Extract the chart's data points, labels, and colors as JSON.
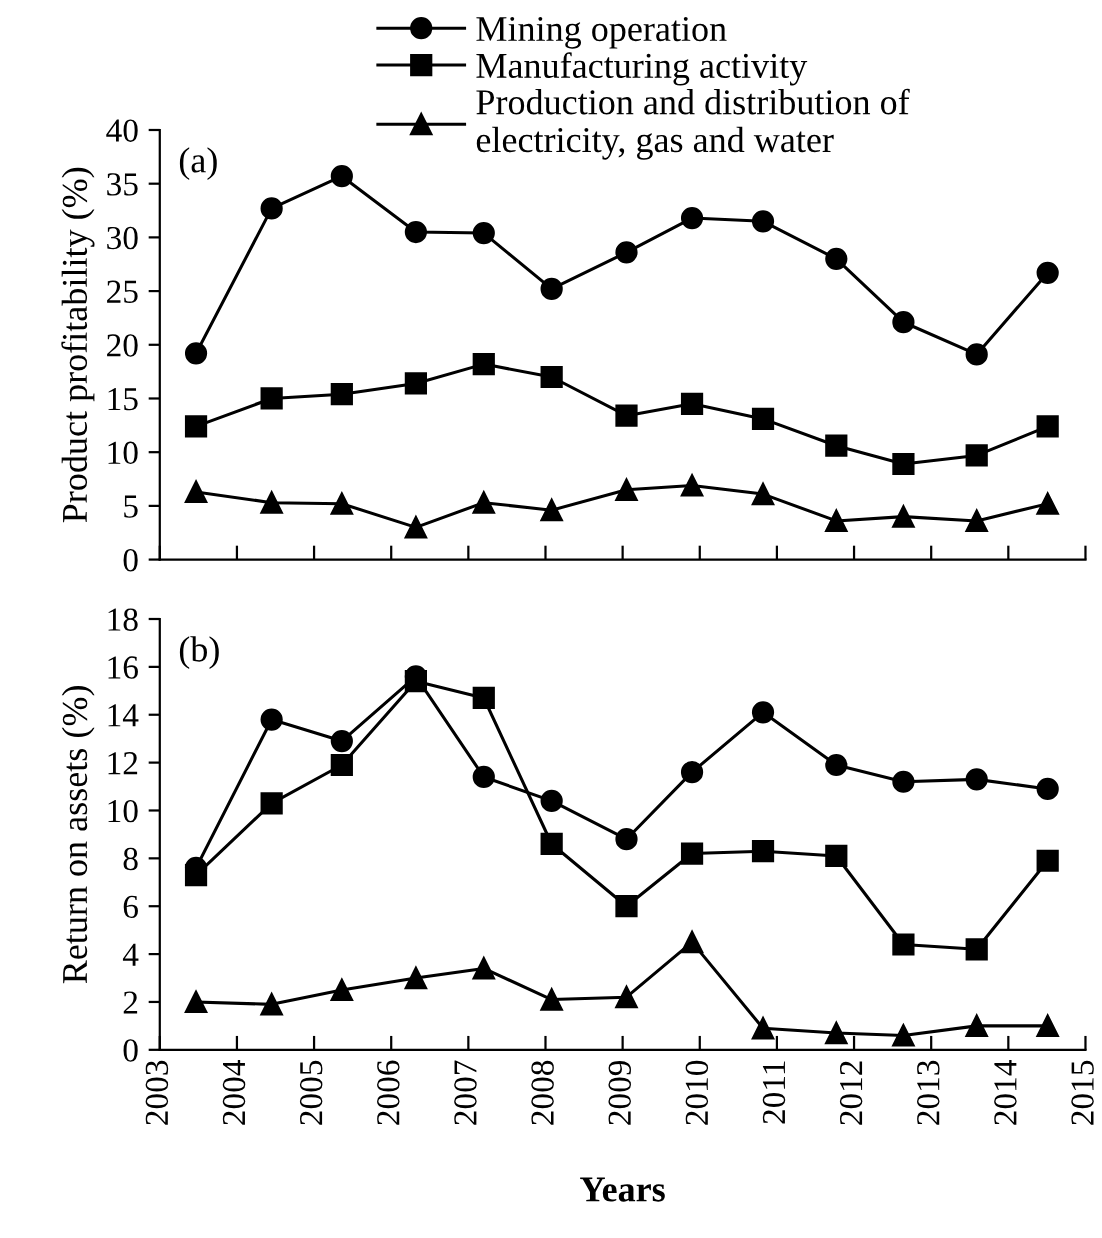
{
  "chart_data": [
    {
      "type": "line",
      "ylabel": "Product profitability (%)",
      "annotations": [
        "(a)"
      ],
      "legend": "top",
      "tick_labels": "y",
      "grid": false,
      "xlim": [
        2003,
        2015
      ],
      "xticks": [
        2003,
        2004,
        2005,
        2006,
        2007,
        2008,
        2009,
        2010,
        2011,
        2012,
        2013,
        2014,
        2015
      ],
      "ylim": [
        0,
        40
      ],
      "yticks": [
        0,
        5,
        10,
        15,
        20,
        25,
        30,
        35,
        40
      ],
      "x": [
        2003.47,
        2004.45,
        2005.36,
        2006.32,
        2007.2,
        2008.08,
        2009.05,
        2009.9,
        2010.82,
        2011.77,
        2012.64,
        2013.59,
        2014.51
      ],
      "series": [
        {
          "name": "Mining operation",
          "color": "#000000",
          "marker": "circle",
          "values": [
            19.2,
            32.7,
            35.7,
            30.5,
            30.4,
            25.2,
            28.6,
            31.8,
            31.5,
            28.0,
            22.1,
            19.1,
            26.7
          ]
        },
        {
          "name": "Manufacturing activity",
          "color": "#000000",
          "marker": "square",
          "values": [
            12.4,
            15.0,
            15.4,
            16.4,
            18.2,
            17.0,
            13.4,
            14.5,
            13.1,
            10.6,
            8.9,
            9.7,
            12.4
          ]
        },
        {
          "name": "Production and distribution of\nelectricity, gas and water",
          "color": "#000000",
          "marker": "triangle",
          "values": [
            6.3,
            5.3,
            5.2,
            3.0,
            5.3,
            4.6,
            6.5,
            6.9,
            6.1,
            3.6,
            4.0,
            3.6,
            5.2
          ]
        }
      ]
    },
    {
      "type": "line",
      "ylabel": "Return on assets (%)",
      "xlabel": "Years",
      "annotations": [
        "(b)"
      ],
      "grid": false,
      "xlim": [
        2003,
        2015
      ],
      "xticks": [
        2003,
        2004,
        2005,
        2006,
        2007,
        2008,
        2009,
        2010,
        2011,
        2012,
        2013,
        2014,
        2015
      ],
      "ylim": [
        0,
        18
      ],
      "yticks": [
        0,
        2,
        4,
        6,
        8,
        10,
        12,
        14,
        16,
        18
      ],
      "x": [
        2003.47,
        2004.45,
        2005.36,
        2006.32,
        2007.2,
        2008.08,
        2009.05,
        2009.9,
        2010.82,
        2011.77,
        2012.64,
        2013.59,
        2014.51
      ],
      "series": [
        {
          "color": "#000000",
          "marker": "circle",
          "values": [
            7.6,
            13.8,
            12.9,
            15.6,
            11.4,
            10.4,
            8.8,
            11.6,
            14.1,
            11.9,
            11.2,
            11.3,
            10.9
          ]
        },
        {
          "color": "#000000",
          "marker": "square",
          "values": [
            7.3,
            10.3,
            11.9,
            15.4,
            14.7,
            8.6,
            6.0,
            8.2,
            8.3,
            8.1,
            4.4,
            4.2,
            7.9
          ]
        },
        {
          "color": "#000000",
          "marker": "triangle",
          "values": [
            2.0,
            1.9,
            2.5,
            3.0,
            3.4,
            2.1,
            2.2,
            4.5,
            0.9,
            0.7,
            0.6,
            1.0,
            1.0
          ]
        }
      ]
    }
  ]
}
